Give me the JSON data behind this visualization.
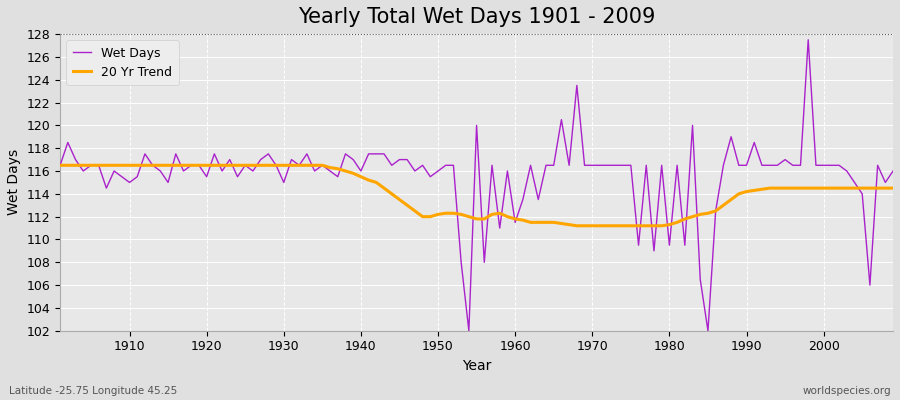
{
  "title": "Yearly Total Wet Days 1901 - 2009",
  "xlabel": "Year",
  "ylabel": "Wet Days",
  "subtitle_left": "Latitude -25.75 Longitude 45.25",
  "subtitle_right": "worldspecies.org",
  "legend_wet": "Wet Days",
  "legend_trend": "20 Yr Trend",
  "ylim": [
    102,
    128
  ],
  "xlim": [
    1901,
    2009
  ],
  "years": [
    1901,
    1902,
    1903,
    1904,
    1905,
    1906,
    1907,
    1908,
    1909,
    1910,
    1911,
    1912,
    1913,
    1914,
    1915,
    1916,
    1917,
    1918,
    1919,
    1920,
    1921,
    1922,
    1923,
    1924,
    1925,
    1926,
    1927,
    1928,
    1929,
    1930,
    1931,
    1932,
    1933,
    1934,
    1935,
    1936,
    1937,
    1938,
    1939,
    1940,
    1941,
    1942,
    1943,
    1944,
    1945,
    1946,
    1947,
    1948,
    1949,
    1950,
    1951,
    1952,
    1953,
    1954,
    1955,
    1956,
    1957,
    1958,
    1959,
    1960,
    1961,
    1962,
    1963,
    1964,
    1965,
    1966,
    1967,
    1968,
    1969,
    1970,
    1971,
    1972,
    1973,
    1974,
    1975,
    1976,
    1977,
    1978,
    1979,
    1980,
    1981,
    1982,
    1983,
    1984,
    1985,
    1986,
    1987,
    1988,
    1989,
    1990,
    1991,
    1992,
    1993,
    1994,
    1995,
    1996,
    1997,
    1998,
    1999,
    2000,
    2001,
    2002,
    2003,
    2004,
    2005,
    2006,
    2007,
    2008,
    2009
  ],
  "wet_days": [
    116.5,
    118.5,
    117.0,
    116.0,
    116.5,
    116.5,
    114.5,
    116.0,
    115.5,
    115.0,
    115.5,
    117.5,
    116.5,
    116.0,
    115.0,
    117.5,
    116.0,
    116.5,
    116.5,
    115.5,
    117.5,
    116.0,
    117.0,
    115.5,
    116.5,
    116.0,
    117.0,
    117.5,
    116.5,
    115.0,
    117.0,
    116.5,
    117.5,
    116.0,
    116.5,
    116.0,
    115.5,
    117.5,
    117.0,
    116.0,
    117.5,
    117.5,
    117.5,
    116.5,
    117.0,
    117.0,
    116.0,
    116.5,
    115.5,
    116.0,
    116.5,
    116.5,
    108.0,
    102.0,
    120.0,
    108.0,
    116.5,
    111.0,
    116.0,
    111.5,
    113.5,
    116.5,
    113.5,
    116.5,
    116.5,
    120.5,
    116.5,
    123.5,
    116.5,
    116.5,
    116.5,
    116.5,
    116.5,
    116.5,
    116.5,
    109.5,
    116.5,
    109.0,
    116.5,
    109.5,
    116.5,
    109.5,
    120.0,
    106.5,
    102.0,
    112.5,
    116.5,
    119.0,
    116.5,
    116.5,
    118.5,
    116.5,
    116.5,
    116.5,
    117.0,
    116.5,
    116.5,
    127.5,
    116.5,
    116.5,
    116.5,
    116.5,
    116.0,
    115.0,
    114.0,
    106.0,
    116.5,
    115.0,
    116.0
  ],
  "trend": [
    116.5,
    116.5,
    116.5,
    116.5,
    116.5,
    116.5,
    116.5,
    116.5,
    116.5,
    116.5,
    116.5,
    116.5,
    116.5,
    116.5,
    116.5,
    116.5,
    116.5,
    116.5,
    116.5,
    116.5,
    116.5,
    116.5,
    116.5,
    116.5,
    116.5,
    116.5,
    116.5,
    116.5,
    116.5,
    116.5,
    116.5,
    116.5,
    116.5,
    116.5,
    116.5,
    116.3,
    116.2,
    116.0,
    115.8,
    115.5,
    115.2,
    115.0,
    114.5,
    114.0,
    113.5,
    113.0,
    112.5,
    112.0,
    112.0,
    112.2,
    112.3,
    112.3,
    112.2,
    112.0,
    111.8,
    111.8,
    112.2,
    112.3,
    112.0,
    111.8,
    111.7,
    111.5,
    111.5,
    111.5,
    111.5,
    111.4,
    111.3,
    111.2,
    111.2,
    111.2,
    111.2,
    111.2,
    111.2,
    111.2,
    111.2,
    111.2,
    111.2,
    111.2,
    111.2,
    111.3,
    111.5,
    111.8,
    112.0,
    112.2,
    112.3,
    112.5,
    113.0,
    113.5,
    114.0,
    114.2,
    114.3,
    114.4,
    114.5,
    114.5,
    114.5,
    114.5,
    114.5,
    114.5,
    114.5,
    114.5,
    114.5,
    114.5,
    114.5,
    114.5,
    114.5,
    114.5,
    114.5,
    114.5,
    114.5
  ],
  "wet_color": "#aa22cc",
  "trend_color": "#FFA500",
  "bg_color": "#e0e0e0",
  "plot_bg_color": "#e8e8e8",
  "grid_color": "#ffffff",
  "title_fontsize": 15,
  "label_fontsize": 10,
  "tick_fontsize": 9,
  "xticks": [
    1910,
    1920,
    1930,
    1940,
    1950,
    1960,
    1970,
    1980,
    1990,
    2000
  ],
  "yticks": [
    102,
    104,
    106,
    108,
    110,
    112,
    114,
    116,
    118,
    120,
    122,
    124,
    126,
    128
  ]
}
